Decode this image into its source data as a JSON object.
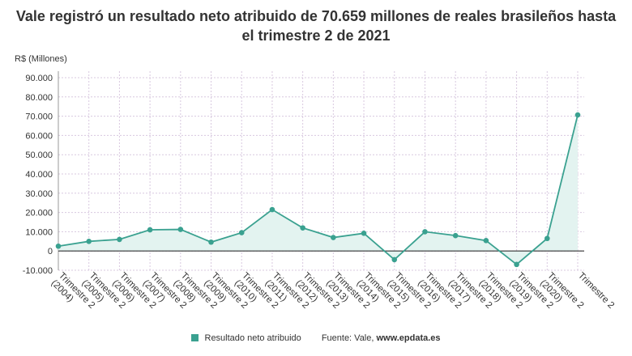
{
  "title_lines": [
    "Vale registró un resultado neto atribuido de 70.659 millones de reales brasileños hasta",
    "el trimestre 2 de 2021"
  ],
  "source": {
    "prefix": "Fuente: Vale, ",
    "site": "www.epdata.es"
  },
  "colors": {
    "series": "#3aa190",
    "area": "#e3f3f0",
    "grid": "#d8c8df",
    "zero": "#333333"
  },
  "chart_data": {
    "type": "area",
    "ylabel": "R$ (Millones)",
    "ylim": [
      -10000,
      90000
    ],
    "yticks": [
      -10000,
      0,
      10000,
      20000,
      30000,
      40000,
      50000,
      60000,
      70000,
      80000,
      90000
    ],
    "ytick_labels": [
      "-10.000",
      "0",
      "10.000",
      "20.000",
      "30.000",
      "40.000",
      "50.000",
      "60.000",
      "70.000",
      "80.000",
      "90.000"
    ],
    "categories": [
      [
        "Trimestre 2",
        "(2004)"
      ],
      [
        "Trimestre 2",
        "(2005)"
      ],
      [
        "Trimestre 2",
        "(2006)"
      ],
      [
        "Trimestre 2",
        "(2007)"
      ],
      [
        "Trimestre 2",
        "(2008)"
      ],
      [
        "Trimestre 2",
        "(2009)"
      ],
      [
        "Trimestre 2",
        "(2010)"
      ],
      [
        "Trimestre 2",
        "(2011)"
      ],
      [
        "Trimestre 2",
        "(2012)"
      ],
      [
        "Trimestre 2",
        "(2013)"
      ],
      [
        "Trimestre 2",
        "(2014)"
      ],
      [
        "Trimestre 2",
        "(2015)"
      ],
      [
        "Trimestre 2",
        "(2016)"
      ],
      [
        "Trimestre 2",
        "(2017)"
      ],
      [
        "Trimestre 2",
        "(2018)"
      ],
      [
        "Trimestre 2",
        "(2019)"
      ],
      [
        "Trimestre 2",
        "(2020)"
      ],
      [
        "Trimestre 2",
        ""
      ]
    ],
    "series": [
      {
        "name": "Resultado neto atribuido",
        "values": [
          2500,
          5000,
          6000,
          11000,
          11200,
          4600,
          9500,
          21500,
          12000,
          7000,
          9200,
          -4500,
          10000,
          8000,
          5400,
          -7000,
          6500,
          70659
        ]
      }
    ],
    "grid": true,
    "legend": "bottom"
  }
}
